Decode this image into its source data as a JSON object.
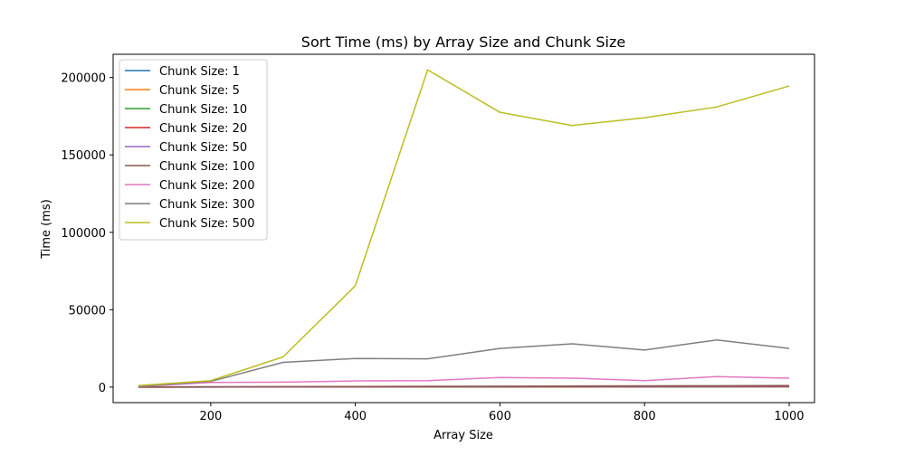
{
  "chart_data": {
    "type": "line",
    "title": "Sort Time (ms) by Array Size and Chunk Size",
    "xlabel": "Array Size",
    "ylabel": "Time (ms)",
    "xlim": [
      65,
      1035
    ],
    "ylim": [
      -10000,
      215000
    ],
    "xticks": [
      200,
      400,
      600,
      800,
      1000
    ],
    "yticks": [
      0,
      50000,
      100000,
      150000,
      200000
    ],
    "grid": false,
    "legend_position": "upper-left",
    "x": [
      100,
      200,
      300,
      400,
      500,
      600,
      700,
      800,
      900,
      1000
    ],
    "series": [
      {
        "name": "Chunk Size: 1",
        "color": "#1f77b4",
        "values": [
          20,
          40,
          60,
          80,
          100,
          120,
          140,
          160,
          180,
          200
        ]
      },
      {
        "name": "Chunk Size: 5",
        "color": "#ff7f0e",
        "values": [
          25,
          50,
          75,
          100,
          125,
          150,
          175,
          200,
          225,
          250
        ]
      },
      {
        "name": "Chunk Size: 10",
        "color": "#2ca02c",
        "values": [
          30,
          60,
          90,
          120,
          150,
          180,
          210,
          240,
          270,
          300
        ]
      },
      {
        "name": "Chunk Size: 20",
        "color": "#d62728",
        "values": [
          40,
          80,
          120,
          160,
          200,
          240,
          280,
          320,
          360,
          400
        ]
      },
      {
        "name": "Chunk Size: 50",
        "color": "#9467bd",
        "values": [
          60,
          120,
          180,
          240,
          300,
          360,
          420,
          480,
          540,
          600
        ]
      },
      {
        "name": "Chunk Size: 100",
        "color": "#8c564b",
        "values": [
          100,
          200,
          300,
          400,
          500,
          600,
          700,
          800,
          900,
          1000
        ]
      },
      {
        "name": "Chunk Size: 200",
        "color": "#e377c2",
        "values": [
          400,
          3000,
          3200,
          4000,
          4200,
          6200,
          5800,
          4200,
          6800,
          5800
        ]
      },
      {
        "name": "Chunk Size: 300",
        "color": "#7f7f7f",
        "values": [
          500,
          3700,
          16000,
          18500,
          18300,
          25000,
          28000,
          24000,
          30500,
          25000
        ]
      },
      {
        "name": "Chunk Size: 500",
        "color": "#bcbd22",
        "values": [
          1000,
          4200,
          19500,
          65500,
          205000,
          177500,
          169000,
          174000,
          181000,
          194500
        ]
      }
    ]
  }
}
